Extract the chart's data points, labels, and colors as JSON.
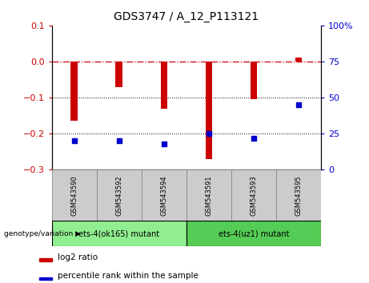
{
  "title": "GDS3747 / A_12_P113121",
  "samples": [
    "GSM543590",
    "GSM543592",
    "GSM543594",
    "GSM543591",
    "GSM543593",
    "GSM543595"
  ],
  "log2_ratio": [
    -0.163,
    -0.072,
    -0.13,
    -0.27,
    -0.105,
    0.01
  ],
  "percentile_rank": [
    20,
    20,
    18,
    25,
    22,
    45
  ],
  "ylim_left": [
    -0.3,
    0.1
  ],
  "ylim_right": [
    0,
    100
  ],
  "yticks_left": [
    -0.3,
    -0.2,
    -0.1,
    0.0,
    0.1
  ],
  "yticks_right": [
    0,
    25,
    50,
    75,
    100
  ],
  "bar_color": "#cc0000",
  "dot_color": "#0000cc",
  "hline_color": "#cc0000",
  "dotline_ticks": [
    -0.1,
    -0.2
  ],
  "group1_label": "ets-4(ok165) mutant",
  "group2_label": "ets-4(uz1) mutant",
  "group1_color": "#90ee90",
  "group2_color": "#55cc55",
  "genotype_label": "genotype/variation",
  "legend_bar_label": "log2 ratio",
  "legend_dot_label": "percentile rank within the sample",
  "tick_label_color_left": "#cc0000",
  "tick_label_color_right": "#0000cc",
  "bar_width": 0.15
}
